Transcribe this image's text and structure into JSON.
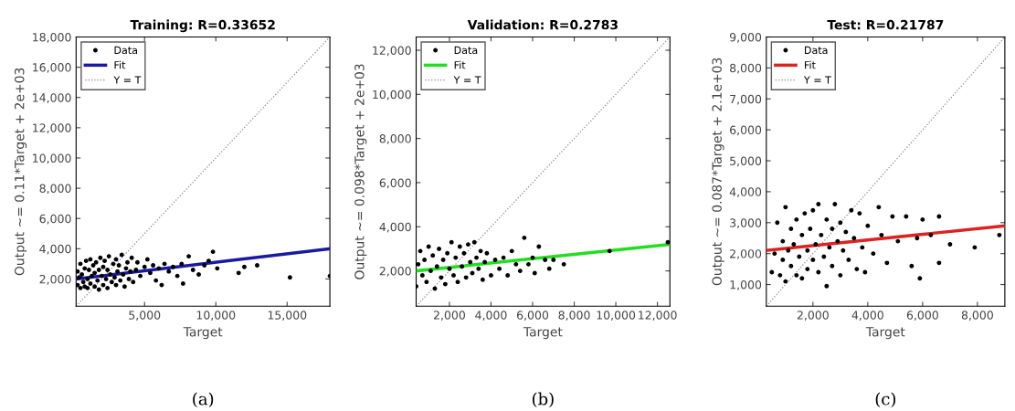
{
  "chart_data": [
    {
      "type": "scatter",
      "title": "Training: R=0.33652",
      "xlabel": "Target",
      "ylabel": "Output ~= 0.11*Target + 2e+03",
      "legend": "top left",
      "xlim": [
        200,
        18000
      ],
      "ylim": [
        200,
        18000
      ],
      "xticks": [
        {
          "value": 5000,
          "label": "5,000"
        },
        {
          "value": 10000,
          "label": "10,000"
        },
        {
          "value": 15000,
          "label": "15,000"
        }
      ],
      "yticks": [
        {
          "value": 2000,
          "label": "2,000"
        },
        {
          "value": 4000,
          "label": "4,000"
        },
        {
          "value": 6000,
          "label": "6,000"
        },
        {
          "value": 8000,
          "label": "8,000"
        },
        {
          "value": 10000,
          "label": "10,000"
        },
        {
          "value": 12000,
          "label": "12,000"
        },
        {
          "value": 14000,
          "label": "14,000"
        },
        {
          "value": 16000,
          "label": "16,000"
        },
        {
          "value": 18000,
          "label": "18,000"
        }
      ],
      "annotations": [
        "(a)"
      ],
      "series": [
        {
          "name": "Data",
          "marker": "circle",
          "color": "#000000",
          "x": [
            300,
            300,
            400,
            500,
            500,
            600,
            700,
            800,
            800,
            900,
            1000,
            1000,
            1100,
            1200,
            1200,
            1300,
            1400,
            1500,
            1500,
            1600,
            1700,
            1800,
            1800,
            1900,
            2000,
            2100,
            2100,
            2200,
            2300,
            2400,
            2400,
            2500,
            2600,
            2700,
            2800,
            2900,
            3000,
            3000,
            3100,
            3200,
            3300,
            3400,
            3500,
            3600,
            3700,
            3800,
            3900,
            4000,
            4100,
            4200,
            4400,
            4500,
            4700,
            5000,
            5200,
            5400,
            5600,
            5800,
            6000,
            6200,
            6400,
            6700,
            7000,
            7300,
            7600,
            7700,
            8100,
            8400,
            8800,
            9200,
            9500,
            9800,
            10100,
            11600,
            12000,
            12900,
            15200,
            18000
          ],
          "values": [
            2500,
            1600,
            2100,
            3000,
            1400,
            2300,
            1800,
            2700,
            1500,
            3200,
            2000,
            1400,
            2600,
            1700,
            3300,
            2200,
            2900,
            1500,
            2400,
            3100,
            1900,
            2600,
            1300,
            3400,
            2200,
            1600,
            2800,
            3200,
            2000,
            1400,
            2600,
            3500,
            2300,
            1800,
            3000,
            2100,
            3300,
            1600,
            2500,
            2900,
            1900,
            3600,
            2300,
            1500,
            2700,
            3100,
            2000,
            2500,
            3400,
            1800,
            2600,
            3100,
            2200,
            2800,
            3300,
            2400,
            2900,
            1900,
            2700,
            1600,
            3000,
            2500,
            2800,
            2200,
            3000,
            1700,
            3500,
            2600,
            2300,
            2900,
            3200,
            3800,
            2700,
            2400,
            2800,
            2900,
            2100,
            2200
          ]
        },
        {
          "name": "Fit",
          "type": "line",
          "line_style": "solid",
          "color": "#1a1aa0",
          "x": [
            200,
            18000
          ],
          "values": [
            2000,
            4000
          ]
        },
        {
          "name": "Y = T",
          "type": "line",
          "line_style": "dotted",
          "color": "#888888",
          "x": [
            200,
            18000
          ],
          "values": [
            200,
            18000
          ]
        }
      ]
    },
    {
      "type": "scatter",
      "title": "Validation: R=0.2783",
      "xlabel": "Target",
      "ylabel": "Output ~= 0.098*Target + 2e+03",
      "legend": "top left",
      "xlim": [
        400,
        12600
      ],
      "ylim": [
        400,
        12600
      ],
      "xticks": [
        {
          "value": 2000,
          "label": "2,000"
        },
        {
          "value": 4000,
          "label": "4,000"
        },
        {
          "value": 6000,
          "label": "6,000"
        },
        {
          "value": 8000,
          "label": "8,000"
        },
        {
          "value": 10000,
          "label": "10,000"
        },
        {
          "value": 12000,
          "label": "12,000"
        }
      ],
      "yticks": [
        {
          "value": 2000,
          "label": "2,000"
        },
        {
          "value": 4000,
          "label": "4,000"
        },
        {
          "value": 6000,
          "label": "6,000"
        },
        {
          "value": 8000,
          "label": "8,000"
        },
        {
          "value": 10000,
          "label": "10,000"
        },
        {
          "value": 12000,
          "label": "12,000"
        }
      ],
      "annotations": [
        "(b)"
      ],
      "series": [
        {
          "name": "Data",
          "marker": "circle",
          "color": "#000000",
          "x": [
            400,
            500,
            600,
            700,
            800,
            900,
            1000,
            1100,
            1200,
            1300,
            1400,
            1500,
            1600,
            1700,
            1800,
            1900,
            2000,
            2100,
            2200,
            2300,
            2400,
            2500,
            2600,
            2700,
            2800,
            2900,
            3000,
            3100,
            3200,
            3300,
            3400,
            3500,
            3600,
            3700,
            3800,
            4000,
            4200,
            4400,
            4600,
            4800,
            5000,
            5200,
            5400,
            5600,
            5800,
            6000,
            6100,
            6300,
            6600,
            6800,
            7000,
            7500,
            9700,
            12500
          ],
          "values": [
            1300,
            2300,
            2900,
            1800,
            2500,
            1500,
            3100,
            2000,
            2700,
            1200,
            2200,
            3000,
            1700,
            2500,
            1400,
            2800,
            2100,
            3300,
            1800,
            2600,
            1500,
            3100,
            2200,
            2800,
            1700,
            3200,
            2400,
            1900,
            3300,
            2600,
            2100,
            2900,
            1600,
            2400,
            2800,
            1800,
            2500,
            2100,
            2600,
            1800,
            2900,
            2300,
            2000,
            3500,
            2300,
            2600,
            1900,
            3100,
            2500,
            2100,
            2500,
            2300,
            2900,
            3300
          ]
        },
        {
          "name": "Fit",
          "type": "line",
          "line_style": "solid",
          "color": "#22dd22",
          "x": [
            400,
            12600
          ],
          "values": [
            2000,
            3200
          ]
        },
        {
          "name": "Y = T",
          "type": "line",
          "line_style": "dotted",
          "color": "#888888",
          "x": [
            400,
            12600
          ],
          "values": [
            400,
            12600
          ]
        }
      ]
    },
    {
      "type": "scatter",
      "title": "Test: R=0.21787",
      "xlabel": "Target",
      "ylabel": "Output ~= 0.087*Target + 2.1e+03",
      "legend": "top left",
      "xlim": [
        300,
        9000
      ],
      "ylim": [
        300,
        9000
      ],
      "xticks": [
        {
          "value": 2000,
          "label": "2,000"
        },
        {
          "value": 4000,
          "label": "4,000"
        },
        {
          "value": 6000,
          "label": "6,000"
        },
        {
          "value": 8000,
          "label": "8,000"
        }
      ],
      "yticks": [
        {
          "value": 1000,
          "label": "1,000"
        },
        {
          "value": 2000,
          "label": "2,000"
        },
        {
          "value": 3000,
          "label": "3,000"
        },
        {
          "value": 4000,
          "label": "4,000"
        },
        {
          "value": 5000,
          "label": "5,000"
        },
        {
          "value": 6000,
          "label": "6,000"
        },
        {
          "value": 7000,
          "label": "7,000"
        },
        {
          "value": 8000,
          "label": "8,000"
        },
        {
          "value": 9000,
          "label": "9,000"
        }
      ],
      "annotations": [
        "(c)"
      ],
      "series": [
        {
          "name": "Data",
          "marker": "circle",
          "color": "#000000",
          "x": [
            500,
            600,
            700,
            800,
            900,
            900,
            1000,
            1000,
            1100,
            1200,
            1200,
            1300,
            1400,
            1400,
            1500,
            1600,
            1600,
            1700,
            1800,
            1800,
            1900,
            2000,
            2000,
            2100,
            2200,
            2200,
            2300,
            2400,
            2500,
            2500,
            2600,
            2700,
            2700,
            2800,
            2900,
            3000,
            3000,
            3100,
            3200,
            3300,
            3400,
            3500,
            3600,
            3700,
            3800,
            3900,
            4000,
            4200,
            4400,
            4500,
            4700,
            4900,
            5100,
            5400,
            5600,
            5800,
            5900,
            6000,
            6300,
            6600,
            6600,
            7000,
            7900,
            8800
          ],
          "values": [
            1400,
            2000,
            3000,
            1300,
            2400,
            1800,
            3500,
            1100,
            2100,
            2800,
            1600,
            2300,
            1300,
            3100,
            1900,
            2600,
            1200,
            3300,
            2100,
            1500,
            2800,
            1800,
            3400,
            2300,
            1400,
            3600,
            2600,
            1900,
            950,
            3100,
            2200,
            2800,
            1600,
            3600,
            2400,
            1300,
            3000,
            2100,
            2700,
            1800,
            3400,
            2500,
            1500,
            3300,
            2200,
            1400,
            2900,
            2000,
            3500,
            2600,
            1700,
            3200,
            2400,
            3200,
            1600,
            2500,
            1200,
            3100,
            2600,
            3200,
            1700,
            2300,
            2200,
            2600
          ]
        },
        {
          "name": "Fit",
          "type": "line",
          "line_style": "solid",
          "color": "#dd2222",
          "x": [
            300,
            9000
          ],
          "values": [
            2100,
            2900
          ]
        },
        {
          "name": "Y = T",
          "type": "line",
          "line_style": "dotted",
          "color": "#888888",
          "x": [
            300,
            9000
          ],
          "values": [
            300,
            9000
          ]
        }
      ]
    }
  ]
}
